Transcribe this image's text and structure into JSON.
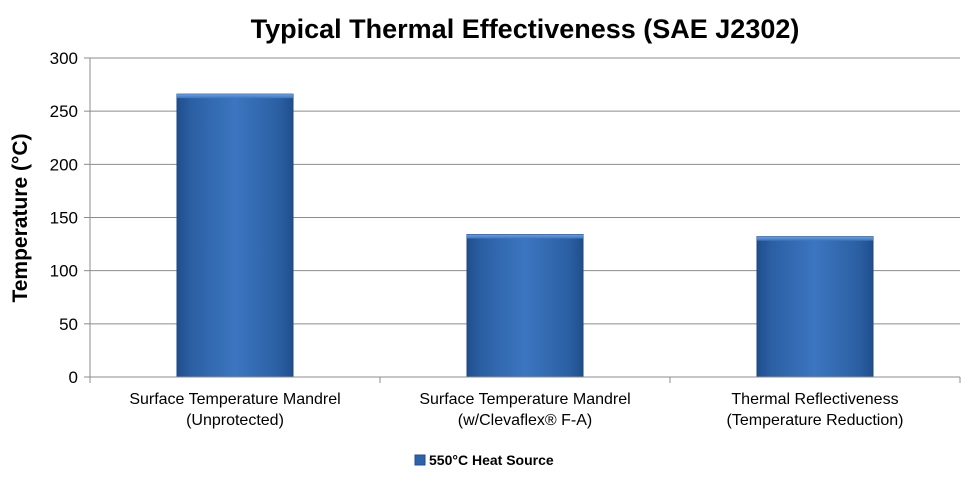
{
  "chart_data": {
    "type": "bar",
    "title": "Typical Thermal Effectiveness (SAE J2302)",
    "ylabel": "Temperature (°C)",
    "xlabel": "",
    "ylim": [
      0,
      300
    ],
    "yticks": [
      0,
      50,
      100,
      150,
      200,
      250,
      300
    ],
    "ytick_labels": [
      "0",
      "50",
      "100",
      "150",
      "200",
      "250",
      "300"
    ],
    "categories": [
      [
        "Surface Temperature Mandrel",
        "(Unprotected)"
      ],
      [
        "Surface Temperature Mandrel",
        "(w/Clevaflex® F-A)"
      ],
      [
        "Thermal Reflectiveness",
        "(Temperature Reduction)"
      ]
    ],
    "series": [
      {
        "name": "550°C Heat Source",
        "values": [
          266,
          134,
          132
        ],
        "color": "#2e63a8"
      }
    ],
    "grid": true,
    "legend_position": "bottom"
  }
}
